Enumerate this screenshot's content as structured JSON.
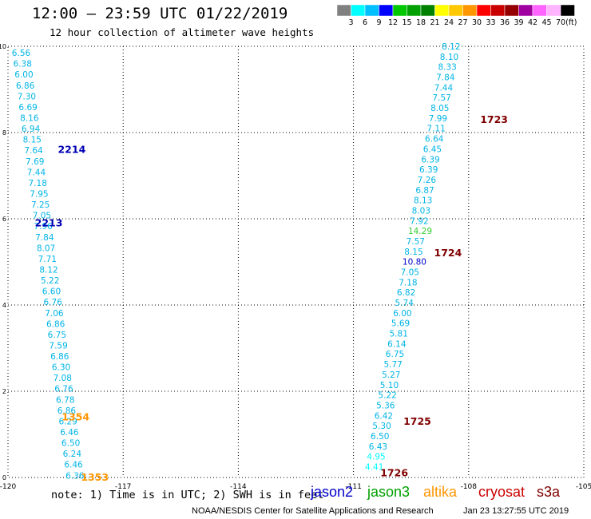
{
  "title": "12:00 – 23:59 UTC 01/22/2019",
  "subtitle": "12 hour collection of altimeter wave heights",
  "legend": {
    "unit": "(ft)",
    "colors": [
      "#808080",
      "#00ffff",
      "#00bfff",
      "#0000ff",
      "#00c800",
      "#00a000",
      "#008000",
      "#ffff00",
      "#ffc800",
      "#ff9600",
      "#ff0000",
      "#c80000",
      "#960000",
      "#a000a0",
      "#ff64ff",
      "#ffb4ff",
      "#000000"
    ],
    "labels": [
      "3",
      "6",
      "9",
      "12",
      "15",
      "18",
      "21",
      "24",
      "27",
      "30",
      "33",
      "36",
      "39",
      "42",
      "45",
      "70"
    ]
  },
  "note": "note:  1) Time is in UTC; 2) SWH is in feet",
  "satellites": [
    {
      "name": "jason2",
      "color": "#0000cc"
    },
    {
      "name": "jason3",
      "color": "#00a000"
    },
    {
      "name": "altika",
      "color": "#ff9600"
    },
    {
      "name": "cryosat",
      "color": "#cc0000"
    },
    {
      "name": "s3a",
      "color": "#800000"
    }
  ],
  "credit": "NOAA/NESDIS Center for Satellite Applications and Research",
  "stamp": "Jan 23 13:27:55 UTC 2019",
  "chart_data": {
    "type": "scatter",
    "xlim": [
      -120,
      -105
    ],
    "ylim": [
      0,
      10
    ],
    "x_ticks": [
      "-120",
      "-117",
      "-114",
      "-111",
      "-108",
      "-105"
    ],
    "y_ticks": [
      "0",
      "2",
      "4",
      "6",
      "8",
      "10"
    ],
    "grid": true,
    "tracks": [
      {
        "x0": -118.5,
        "x1": -119.9,
        "y0": 0.05,
        "y1": 9.85,
        "color": "#00b4e6",
        "values": [
          "6.36",
          "6.46",
          "6.24",
          "6.50",
          "6.46",
          "6.29",
          "6.86",
          "6.78",
          "6.76",
          "7.08",
          "6.30",
          "6.86",
          "7.59",
          "6.75",
          "6.86",
          "7.06",
          "6.76",
          "6.60",
          "5.22",
          "8.12",
          "7.71",
          "8.07",
          "7.84",
          "7.96",
          "7.05",
          "7.25",
          "7.95",
          "7.18",
          "7.44",
          "7.69",
          "7.64",
          "8.15",
          "6.94",
          "8.16",
          "6.69",
          "7.30",
          "6.86",
          "6.00",
          "6.38",
          "6.56"
        ]
      },
      {
        "x0": -110.7,
        "x1": -108.7,
        "y0": 0.25,
        "y1": 10.0,
        "color": "#00b4e6",
        "values": [
          "4.41",
          "4.95",
          "6.43",
          "6.50",
          "5.30",
          "6.42",
          "5.36",
          "5.22",
          "5.10",
          "5.27",
          "5.77",
          "6.75",
          "6.14",
          "5.81",
          "5.69",
          "6.00",
          "5.74",
          "6.82",
          "7.18",
          "7.05",
          "10.80",
          "8.15",
          "7.57",
          "14.29",
          "7.92",
          "8.03",
          "8.13",
          "6.87",
          "7.26",
          "6.39",
          "6.39",
          "6.45",
          "6.64",
          "7.11",
          "7.99",
          "8.05",
          "7.57",
          "7.44",
          "7.84",
          "8.33",
          "8.10",
          "8.12"
        ],
        "special": {
          "10.80": "#0000cc",
          "14.29": "#32cd32",
          "4.41": "#00ffff",
          "4.95": "#00ffff"
        }
      }
    ],
    "time_labels": [
      {
        "text": "2214",
        "x": -118.7,
        "y": 7.6,
        "color": "#0000b4"
      },
      {
        "text": "2213",
        "x": -119.3,
        "y": 5.9,
        "color": "#0000b4"
      },
      {
        "text": "1354",
        "x": -118.6,
        "y": 1.4,
        "color": "#ff9600"
      },
      {
        "text": "1353",
        "x": -118.1,
        "y": 0.0,
        "color": "#ff9600"
      },
      {
        "text": "1723",
        "x": -107.7,
        "y": 8.3,
        "color": "#800000"
      },
      {
        "text": "1724",
        "x": -108.9,
        "y": 5.2,
        "color": "#800000"
      },
      {
        "text": "1725",
        "x": -109.7,
        "y": 1.3,
        "color": "#800000"
      },
      {
        "text": "1726",
        "x": -110.3,
        "y": 0.1,
        "color": "#800000"
      }
    ]
  }
}
